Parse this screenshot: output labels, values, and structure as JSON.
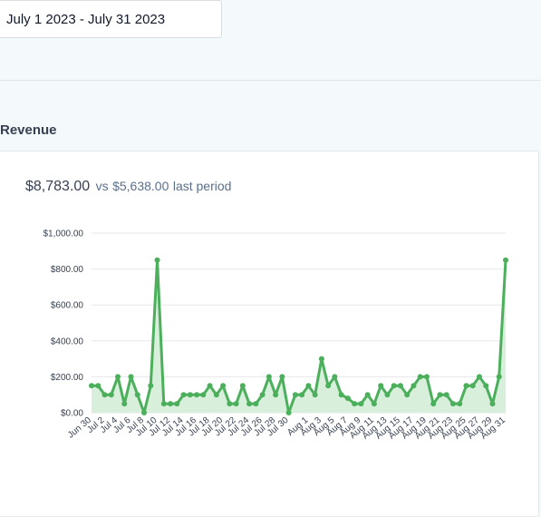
{
  "date_range": {
    "value": "July 1 2023 - July 31 2023"
  },
  "section": {
    "title": "Revenue"
  },
  "summary": {
    "total": "$8,783.00",
    "vs_label": "vs",
    "previous": "$5,638.00",
    "suffix": "last period"
  },
  "colors": {
    "line": "#4caf5c",
    "area": "#d7efdb",
    "grid": "#e5e7eb",
    "axis_text": "#374151"
  },
  "chart_data": {
    "type": "area",
    "title": "",
    "xlabel": "",
    "ylabel": "",
    "ylim": [
      0,
      1000
    ],
    "y_ticks": [
      "$0.00",
      "$200.00",
      "$400.00",
      "$600.00",
      "$800.00",
      "$1,000.00"
    ],
    "grid": true,
    "x_tick_labels": [
      "Jun 30",
      "Jul 2",
      "Jul 4",
      "Jul 6",
      "Jul 8",
      "Jul 10",
      "Jul 12",
      "Jul 14",
      "Jul 16",
      "Jul 18",
      "Jul 20",
      "Jul 22",
      "Jul 24",
      "Jul 26",
      "Jul 28",
      "Jul 30",
      "Aug 1",
      "Aug 3",
      "Aug 5",
      "Aug 7",
      "Aug 9",
      "Aug 11",
      "Aug 13",
      "Aug 15",
      "Aug 17",
      "Aug 19",
      "Aug 21",
      "Aug 23",
      "Aug 25",
      "Aug 27",
      "Aug 29",
      "Aug 31"
    ],
    "values": [
      150,
      150,
      100,
      100,
      200,
      50,
      200,
      100,
      0,
      150,
      850,
      50,
      50,
      50,
      100,
      100,
      100,
      100,
      150,
      100,
      150,
      50,
      50,
      150,
      50,
      50,
      100,
      200,
      100,
      200,
      0,
      100,
      100,
      150,
      100,
      300,
      150,
      200,
      100,
      80,
      50,
      50,
      100,
      50,
      150,
      100,
      150,
      150,
      100,
      150,
      200,
      200,
      50,
      100,
      100,
      50,
      50,
      150,
      150,
      200,
      150,
      50,
      200,
      850
    ]
  }
}
